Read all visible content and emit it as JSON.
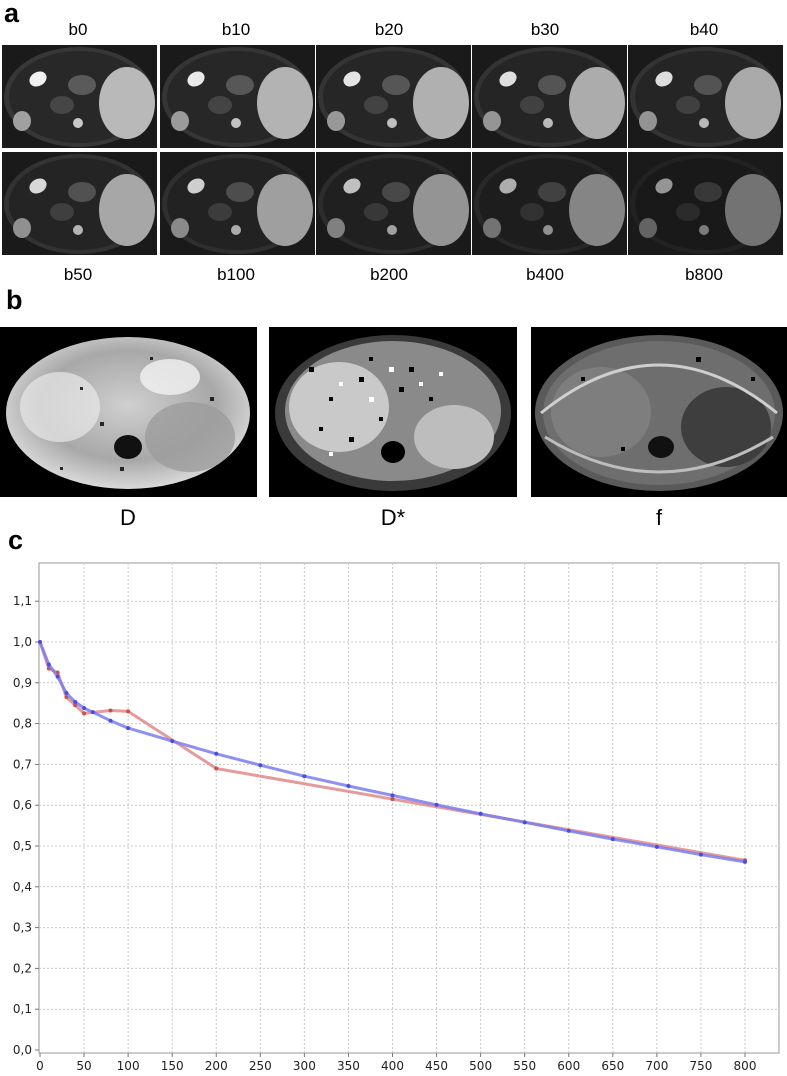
{
  "panels": {
    "a": "a",
    "b": "b",
    "c": "c"
  },
  "dwi": {
    "top_labels": [
      "b0",
      "b10",
      "b20",
      "b30",
      "b40"
    ],
    "bottom_labels": [
      "b50",
      "b100",
      "b200",
      "b400",
      "b800"
    ],
    "brightness": [
      1.0,
      0.97,
      0.95,
      0.93,
      0.92,
      0.9,
      0.86,
      0.8,
      0.72,
      0.62
    ]
  },
  "maps": {
    "labels": [
      "D",
      "D*",
      "f"
    ]
  },
  "chart_data": {
    "type": "line",
    "xlim": [
      0,
      800
    ],
    "ylim": [
      0,
      1.2
    ],
    "xticks": [
      0,
      50,
      100,
      150,
      200,
      250,
      300,
      350,
      400,
      450,
      500,
      550,
      600,
      650,
      700,
      750,
      800
    ],
    "yticks": [
      "0,0",
      "0,1",
      "0,2",
      "0,3",
      "0,4",
      "0,5",
      "0,6",
      "0,7",
      "0,8",
      "0,9",
      "1,0",
      "1,1"
    ],
    "grid": true,
    "series": [
      {
        "color": "#e08a8a",
        "x": [
          0,
          10,
          20,
          30,
          40,
          50,
          80,
          100,
          200,
          400,
          800
        ],
        "y": [
          1.0,
          0.935,
          0.925,
          0.865,
          0.845,
          0.825,
          0.832,
          0.83,
          0.69,
          0.615,
          0.465
        ]
      },
      {
        "color": "#7a7ef0",
        "x": [
          0,
          10,
          20,
          30,
          40,
          50,
          60,
          80,
          100,
          150,
          200,
          250,
          300,
          350,
          400,
          450,
          500,
          550,
          600,
          650,
          700,
          750,
          800
        ],
        "y": [
          1.0,
          0.945,
          0.915,
          0.875,
          0.853,
          0.838,
          0.828,
          0.807,
          0.789,
          0.757,
          0.726,
          0.698,
          0.671,
          0.647,
          0.624,
          0.601,
          0.579,
          0.558,
          0.537,
          0.517,
          0.498,
          0.479,
          0.461
        ]
      }
    ]
  }
}
